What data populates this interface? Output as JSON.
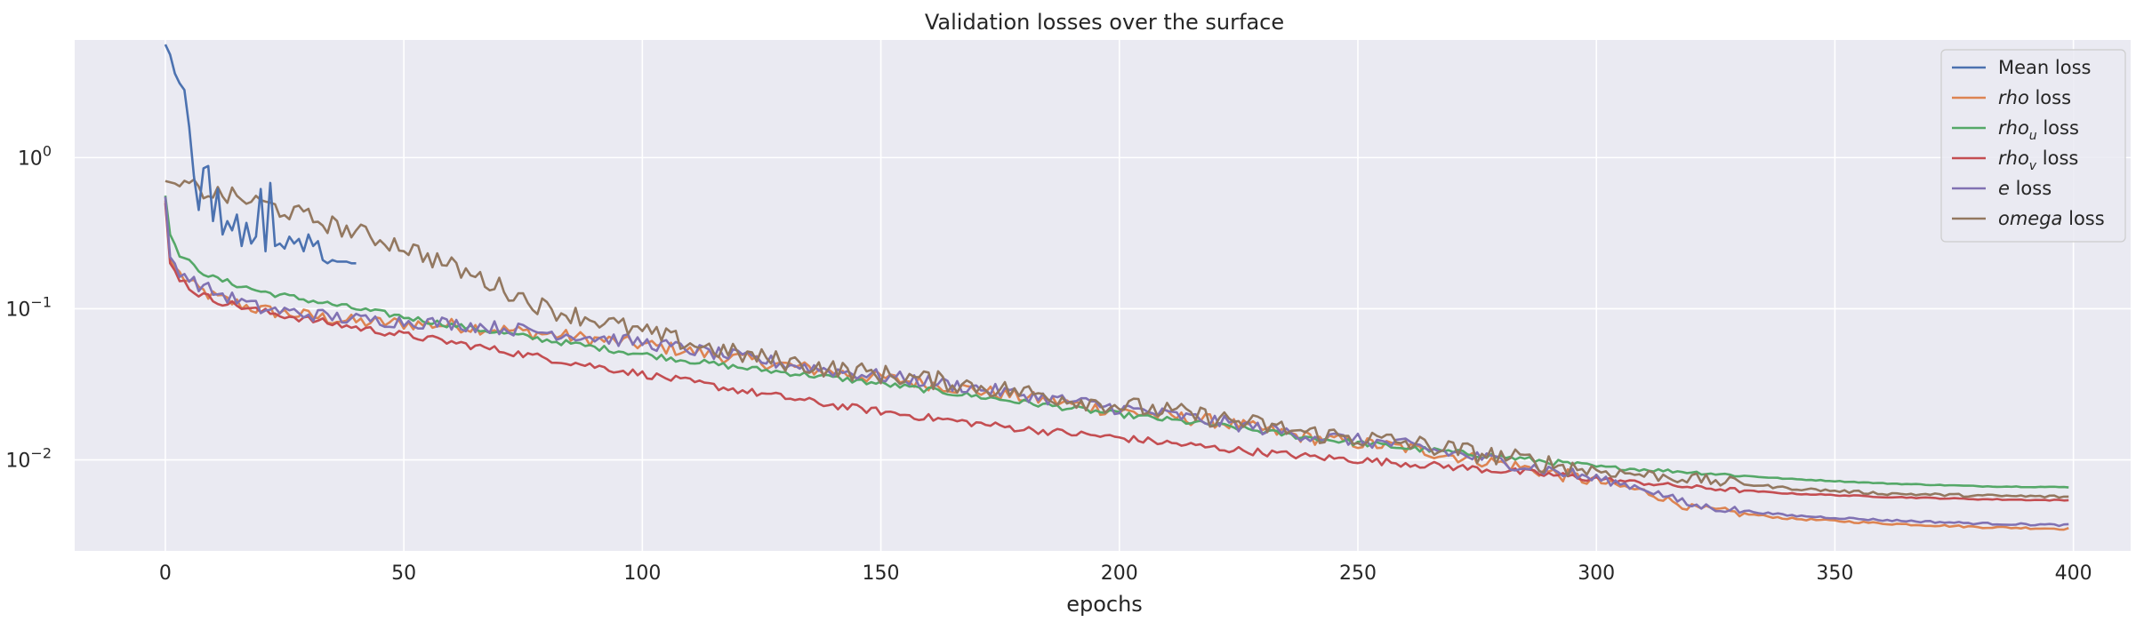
{
  "chart_data": {
    "type": "line",
    "title": "Validation losses over the surface",
    "xlabel": "epochs",
    "ylabel": "",
    "xscale": "linear",
    "yscale": "log",
    "xlim": [
      -19,
      412
    ],
    "ylim": [
      0.0025,
      6.0
    ],
    "x_ticks": [
      0,
      50,
      100,
      150,
      200,
      250,
      300,
      350,
      400
    ],
    "y_ticks": [
      {
        "value": 1,
        "base": "10",
        "exp": "0"
      },
      {
        "value": 0.1,
        "base": "10",
        "exp": "−1"
      },
      {
        "value": 0.01,
        "base": "10",
        "exp": "−2"
      }
    ],
    "grid": true,
    "background": "#eaeaf2",
    "legend_position": "top-right",
    "series": [
      {
        "name": "Mean loss",
        "label_italic": "",
        "label_sub": "",
        "label_suffix": "Mean loss",
        "color": "#4c72b0",
        "x": [
          0,
          1,
          2,
          3,
          4,
          5,
          6,
          7,
          8,
          9,
          10,
          11,
          12,
          13,
          14,
          15,
          16,
          17,
          18,
          19,
          20,
          21,
          22,
          23,
          24,
          25,
          26,
          27,
          28,
          29,
          30,
          31,
          32,
          33,
          34,
          35,
          36,
          37,
          38,
          39,
          40
        ],
        "values": [
          5.6,
          4.8,
          3.6,
          3.1,
          2.8,
          1.6,
          0.75,
          0.45,
          0.85,
          0.88,
          0.38,
          0.62,
          0.31,
          0.38,
          0.33,
          0.42,
          0.26,
          0.37,
          0.27,
          0.3,
          0.62,
          0.24,
          0.68,
          0.26,
          0.27,
          0.25,
          0.3,
          0.27,
          0.29,
          0.24,
          0.31,
          0.26,
          0.28,
          0.21,
          0.2,
          0.21,
          0.205,
          0.205,
          0.205,
          0.2,
          0.2
        ]
      },
      {
        "name": "rho loss",
        "label_italic": "rho",
        "label_sub": "",
        "label_suffix": " loss",
        "color": "#dd8452",
        "key": [
          [
            0,
            0.52
          ],
          [
            1,
            0.21
          ],
          [
            3,
            0.17
          ],
          [
            6,
            0.14
          ],
          [
            10,
            0.12
          ],
          [
            20,
            0.098
          ],
          [
            40,
            0.082
          ],
          [
            60,
            0.078
          ],
          [
            80,
            0.068
          ],
          [
            100,
            0.058
          ],
          [
            120,
            0.047
          ],
          [
            140,
            0.038
          ],
          [
            160,
            0.032
          ],
          [
            180,
            0.026
          ],
          [
            200,
            0.021
          ],
          [
            220,
            0.018
          ],
          [
            240,
            0.014
          ],
          [
            260,
            0.012
          ],
          [
            280,
            0.0095
          ],
          [
            300,
            0.0072
          ],
          [
            310,
            0.0062
          ],
          [
            320,
            0.0048
          ],
          [
            340,
            0.0041
          ],
          [
            360,
            0.0038
          ],
          [
            380,
            0.0036
          ],
          [
            399,
            0.0035
          ]
        ],
        "noise": 0.09
      },
      {
        "name": "rhou loss",
        "label_italic": "rho",
        "label_sub": "u",
        "label_suffix": " loss",
        "color": "#55a868",
        "key": [
          [
            0,
            0.56
          ],
          [
            1,
            0.31
          ],
          [
            3,
            0.23
          ],
          [
            6,
            0.19
          ],
          [
            10,
            0.16
          ],
          [
            20,
            0.13
          ],
          [
            40,
            0.1
          ],
          [
            60,
            0.078
          ],
          [
            80,
            0.062
          ],
          [
            100,
            0.05
          ],
          [
            120,
            0.041
          ],
          [
            140,
            0.035
          ],
          [
            160,
            0.029
          ],
          [
            180,
            0.024
          ],
          [
            200,
            0.02
          ],
          [
            220,
            0.017
          ],
          [
            240,
            0.014
          ],
          [
            260,
            0.012
          ],
          [
            280,
            0.0105
          ],
          [
            300,
            0.009
          ],
          [
            320,
            0.0083
          ],
          [
            340,
            0.0075
          ],
          [
            360,
            0.007
          ],
          [
            380,
            0.0067
          ],
          [
            399,
            0.0066
          ]
        ],
        "noise": 0.04
      },
      {
        "name": "rhov loss",
        "label_italic": "rho",
        "label_sub": "v",
        "label_suffix": " loss",
        "color": "#c44e52",
        "key": [
          [
            0,
            0.5
          ],
          [
            1,
            0.2
          ],
          [
            3,
            0.16
          ],
          [
            6,
            0.13
          ],
          [
            10,
            0.115
          ],
          [
            20,
            0.096
          ],
          [
            40,
            0.075
          ],
          [
            60,
            0.06
          ],
          [
            80,
            0.047
          ],
          [
            100,
            0.037
          ],
          [
            120,
            0.029
          ],
          [
            140,
            0.023
          ],
          [
            160,
            0.019
          ],
          [
            180,
            0.016
          ],
          [
            200,
            0.014
          ],
          [
            220,
            0.012
          ],
          [
            240,
            0.0105
          ],
          [
            260,
            0.0095
          ],
          [
            280,
            0.0085
          ],
          [
            300,
            0.0075
          ],
          [
            320,
            0.0066
          ],
          [
            340,
            0.006
          ],
          [
            360,
            0.0057
          ],
          [
            380,
            0.0055
          ],
          [
            399,
            0.0054
          ]
        ],
        "noise": 0.05
      },
      {
        "name": "e loss",
        "label_italic": "e",
        "label_sub": "",
        "label_suffix": " loss",
        "color": "#8172b3",
        "key": [
          [
            0,
            0.55
          ],
          [
            1,
            0.22
          ],
          [
            3,
            0.18
          ],
          [
            6,
            0.15
          ],
          [
            10,
            0.13
          ],
          [
            20,
            0.1
          ],
          [
            40,
            0.085
          ],
          [
            60,
            0.08
          ],
          [
            80,
            0.07
          ],
          [
            100,
            0.06
          ],
          [
            120,
            0.048
          ],
          [
            140,
            0.039
          ],
          [
            160,
            0.033
          ],
          [
            180,
            0.027
          ],
          [
            200,
            0.022
          ],
          [
            220,
            0.018
          ],
          [
            240,
            0.0145
          ],
          [
            260,
            0.0125
          ],
          [
            280,
            0.0098
          ],
          [
            300,
            0.0075
          ],
          [
            310,
            0.0065
          ],
          [
            320,
            0.005
          ],
          [
            340,
            0.0043
          ],
          [
            360,
            0.004
          ],
          [
            380,
            0.0038
          ],
          [
            399,
            0.0037
          ]
        ],
        "noise": 0.09
      },
      {
        "name": "omega loss",
        "label_italic": "omega",
        "label_sub": "",
        "label_suffix": " loss",
        "color": "#937860",
        "key": [
          [
            0,
            0.7
          ],
          [
            10,
            0.58
          ],
          [
            20,
            0.5
          ],
          [
            30,
            0.4
          ],
          [
            40,
            0.32
          ],
          [
            50,
            0.26
          ],
          [
            60,
            0.19
          ],
          [
            70,
            0.14
          ],
          [
            80,
            0.1
          ],
          [
            90,
            0.085
          ],
          [
            100,
            0.07
          ],
          [
            120,
            0.05
          ],
          [
            140,
            0.04
          ],
          [
            160,
            0.034
          ],
          [
            180,
            0.028
          ],
          [
            200,
            0.023
          ],
          [
            220,
            0.019
          ],
          [
            240,
            0.015
          ],
          [
            260,
            0.013
          ],
          [
            280,
            0.0105
          ],
          [
            300,
            0.0085
          ],
          [
            320,
            0.0075
          ],
          [
            340,
            0.0065
          ],
          [
            360,
            0.006
          ],
          [
            380,
            0.0058
          ],
          [
            399,
            0.0057
          ]
        ],
        "noise": 0.13
      }
    ]
  }
}
